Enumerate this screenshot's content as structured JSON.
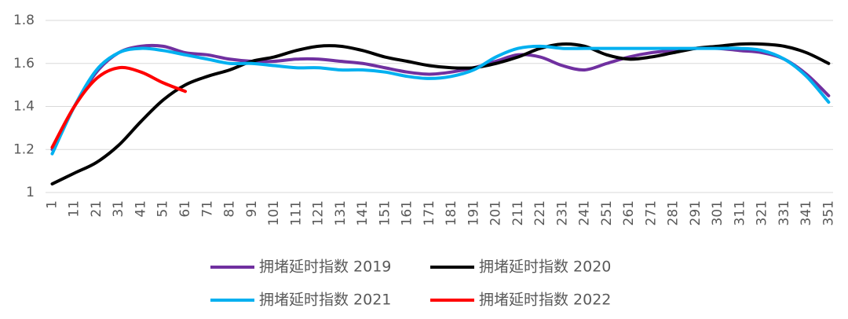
{
  "chart_data": {
    "type": "line",
    "x": [
      1,
      11,
      21,
      31,
      41,
      51,
      61,
      71,
      81,
      91,
      101,
      111,
      121,
      131,
      141,
      151,
      161,
      171,
      181,
      191,
      201,
      211,
      221,
      231,
      241,
      251,
      261,
      271,
      281,
      291,
      301,
      311,
      321,
      331,
      341,
      351
    ],
    "xlim": [
      -2,
      353
    ],
    "ylim": [
      1,
      1.8
    ],
    "yticks": [
      1,
      1.2,
      1.4,
      1.6,
      1.8
    ],
    "grid": true,
    "legend": "bottom",
    "series": [
      {
        "name": "拥堵延时指数 2019",
        "color": "#7030a0",
        "values": [
          1.2,
          1.4,
          1.56,
          1.65,
          1.68,
          1.68,
          1.65,
          1.64,
          1.62,
          1.61,
          1.61,
          1.62,
          1.62,
          1.61,
          1.6,
          1.58,
          1.56,
          1.55,
          1.56,
          1.58,
          1.61,
          1.64,
          1.63,
          1.59,
          1.57,
          1.6,
          1.63,
          1.65,
          1.66,
          1.67,
          1.67,
          1.66,
          1.65,
          1.62,
          1.55,
          1.45
        ]
      },
      {
        "name": "拥堵延时指数 2020",
        "color": "#000000",
        "values": [
          1.04,
          1.09,
          1.14,
          1.22,
          1.33,
          1.43,
          1.5,
          1.54,
          1.57,
          1.61,
          1.63,
          1.66,
          1.68,
          1.68,
          1.66,
          1.63,
          1.61,
          1.59,
          1.58,
          1.58,
          1.6,
          1.63,
          1.67,
          1.69,
          1.68,
          1.64,
          1.62,
          1.63,
          1.65,
          1.67,
          1.68,
          1.69,
          1.69,
          1.68,
          1.65,
          1.6
        ]
      },
      {
        "name": "拥堵延时指数 2021",
        "color": "#00b0f0",
        "values": [
          1.18,
          1.4,
          1.57,
          1.65,
          1.67,
          1.66,
          1.64,
          1.62,
          1.6,
          1.6,
          1.59,
          1.58,
          1.58,
          1.57,
          1.57,
          1.56,
          1.54,
          1.53,
          1.54,
          1.57,
          1.63,
          1.67,
          1.68,
          1.67,
          1.67,
          1.67,
          1.67,
          1.67,
          1.67,
          1.67,
          1.67,
          1.67,
          1.66,
          1.62,
          1.54,
          1.42
        ]
      },
      {
        "name": "拥堵延时指数 2022",
        "color": "#ff0000",
        "values": [
          1.21,
          1.4,
          1.53,
          1.58,
          1.56,
          1.51,
          1.47,
          null,
          null,
          null,
          null,
          null,
          null,
          null,
          null,
          null,
          null,
          null,
          null,
          null,
          null,
          null,
          null,
          null,
          null,
          null,
          null,
          null,
          null,
          null,
          null,
          null,
          null,
          null,
          null,
          null
        ]
      }
    ]
  }
}
